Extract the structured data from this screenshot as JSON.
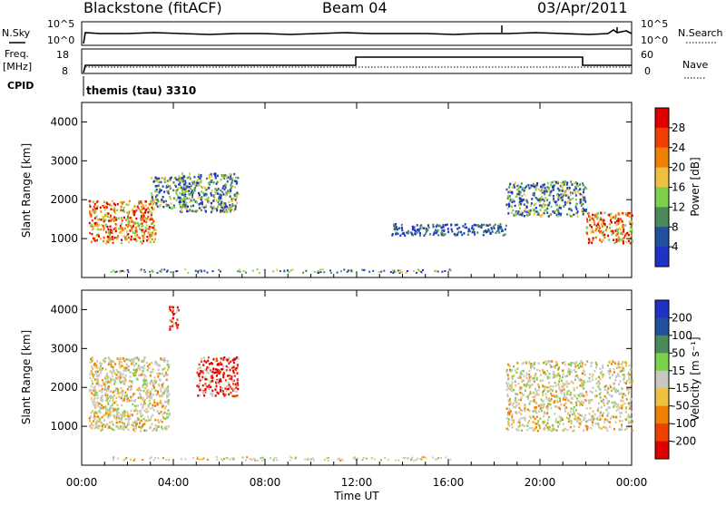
{
  "header": {
    "station": "Blackstone (fitACF)",
    "beam": "Beam 04",
    "date": "03/Apr/2011"
  },
  "noise_panel": {
    "left_label": "N.Sky",
    "right_label": "N.Search",
    "left_ticks": [
      "10^5",
      "10^0"
    ],
    "right_ticks": [
      "10^5",
      "10^0"
    ]
  },
  "freq_panel": {
    "left_label_1": "Freq.",
    "left_label_2": "[MHz]",
    "right_label": "Nave",
    "left_ticks": [
      "18",
      "8"
    ],
    "right_ticks": [
      "60",
      "0"
    ]
  },
  "cpid": {
    "label": "CPID",
    "program": "themis (tau) 3310"
  },
  "power_colorbar": {
    "label": "Power [dB]",
    "ticks": [
      "28",
      "24",
      "20",
      "16",
      "12",
      "8",
      "4"
    ],
    "colors": [
      "#e00000",
      "#f04000",
      "#f08000",
      "#f0c040",
      "#7dd04a",
      "#4c8a5c",
      "#2050a0",
      "#1e32c8"
    ]
  },
  "velocity_colorbar": {
    "label": "Velocity [m s⁻¹]",
    "ticks": [
      "200",
      "100",
      "50",
      "15",
      "-15",
      "-50",
      "-100",
      "-200"
    ],
    "colors": [
      "#1e32c8",
      "#2050a0",
      "#4c8a5c",
      "#7dd04a",
      "#c8c8c0",
      "#f0c040",
      "#f08000",
      "#f04000",
      "#e00000"
    ]
  },
  "chart_data": [
    {
      "type": "heatmap",
      "title": "",
      "ylabel": "Slant Range [km]",
      "xlabel": "",
      "ylim": [
        0,
        4500
      ],
      "yticks": [
        1000,
        2000,
        3000,
        4000
      ],
      "xlim": [
        0,
        24
      ],
      "colorbar_label": "Power [dB]",
      "regions": [
        {
          "t0": 0.3,
          "t1": 3.2,
          "r0": 900,
          "r1": 2000,
          "value": "high"
        },
        {
          "t0": 3.0,
          "t1": 4.8,
          "r0": 1800,
          "r1": 2600,
          "value": "mid"
        },
        {
          "t0": 4.2,
          "t1": 6.8,
          "r0": 1700,
          "r1": 2700,
          "value": "mid"
        },
        {
          "t0": 18.5,
          "t1": 22.0,
          "r0": 1600,
          "r1": 2500,
          "value": "mid"
        },
        {
          "t0": 22.0,
          "t1": 24.0,
          "r0": 900,
          "r1": 1700,
          "value": "high"
        },
        {
          "t0": 13.5,
          "t1": 18.5,
          "r0": 1100,
          "r1": 1400,
          "value": "low"
        }
      ]
    },
    {
      "type": "heatmap",
      "title": "",
      "ylabel": "Slant Range [km]",
      "xlabel": "Time UT",
      "ylim": [
        0,
        4500
      ],
      "yticks": [
        1000,
        2000,
        3000,
        4000
      ],
      "xlim": [
        0,
        24
      ],
      "xticks": [
        "00:00",
        "04:00",
        "08:00",
        "12:00",
        "16:00",
        "20:00",
        "00:00"
      ],
      "colorbar_label": "Velocity [m s⁻¹]",
      "regions": [
        {
          "t0": 0.3,
          "t1": 3.8,
          "r0": 900,
          "r1": 2800,
          "value": "near-zero"
        },
        {
          "t0": 5.0,
          "t1": 6.8,
          "r0": 1800,
          "r1": 2800,
          "value": "strong-negative"
        },
        {
          "t0": 3.8,
          "t1": 4.2,
          "r0": 3500,
          "r1": 4100,
          "value": "strong-negative"
        },
        {
          "t0": 18.5,
          "t1": 24.0,
          "r0": 900,
          "r1": 2700,
          "value": "near-zero"
        }
      ]
    }
  ],
  "xaxis": {
    "ticks": [
      "00:00",
      "04:00",
      "08:00",
      "12:00",
      "16:00",
      "20:00",
      "00:00"
    ],
    "label": "Time UT"
  }
}
